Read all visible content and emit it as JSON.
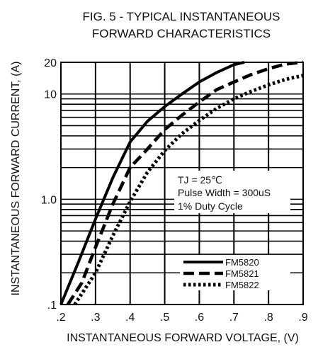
{
  "chart_data": {
    "type": "line",
    "title_lines": [
      "FIG. 5 - TYPICAL INSTANTANEOUS",
      "FORWARD CHARACTERISTICS"
    ],
    "xlabel": "INSTANTANEOUS FORWARD VOLTAGE, (V)",
    "ylabel": "INSTANTANEOUS FORWARD CURRENT, (A)",
    "xlim": [
      0.2,
      0.9
    ],
    "ylim": [
      0.1,
      20
    ],
    "yscale": "log",
    "grid": true,
    "x_ticks": [
      {
        "value": 0.2,
        "label": ".2"
      },
      {
        "value": 0.3,
        "label": ".3"
      },
      {
        "value": 0.4,
        "label": ".4"
      },
      {
        "value": 0.5,
        "label": ".5"
      },
      {
        "value": 0.6,
        "label": ".6"
      },
      {
        "value": 0.7,
        "label": ".7"
      },
      {
        "value": 0.8,
        "label": ".8"
      },
      {
        "value": 0.9,
        "label": ".9"
      }
    ],
    "y_ticks": [
      {
        "value": 0.1,
        "label": ".1"
      },
      {
        "value": 1.0,
        "label": "1.0"
      },
      {
        "value": 10,
        "label": "10"
      },
      {
        "value": 20,
        "label": "20"
      }
    ],
    "annotation_lines": [
      "TJ = 25℃",
      "Pulse Width = 300uS",
      "1% Duty Cycle"
    ],
    "legend_position": "lower-right",
    "series": [
      {
        "name": "FM5820",
        "style": "solid",
        "color": "#000000",
        "x": [
          0.2,
          0.25,
          0.3,
          0.35,
          0.4,
          0.45,
          0.5,
          0.55,
          0.6,
          0.65,
          0.7,
          0.73
        ],
        "y": [
          0.1,
          0.25,
          0.65,
          1.6,
          3.5,
          5.5,
          7.6,
          10,
          13,
          16,
          19,
          20
        ]
      },
      {
        "name": "FM5821",
        "style": "dashed",
        "color": "#000000",
        "x": [
          0.22,
          0.26,
          0.3,
          0.35,
          0.4,
          0.45,
          0.5,
          0.55,
          0.6,
          0.65,
          0.7,
          0.75,
          0.8,
          0.85,
          0.9
        ],
        "y": [
          0.1,
          0.16,
          0.35,
          0.9,
          2.0,
          3.0,
          4.6,
          6.3,
          8.4,
          11,
          13,
          15.3,
          17.4,
          19.3,
          20
        ]
      },
      {
        "name": "FM5822",
        "style": "dotted",
        "color": "#000000",
        "x": [
          0.24,
          0.3,
          0.35,
          0.4,
          0.45,
          0.5,
          0.55,
          0.6,
          0.65,
          0.7,
          0.75,
          0.8,
          0.85,
          0.9
        ],
        "y": [
          0.1,
          0.2,
          0.45,
          0.95,
          1.8,
          2.9,
          4.2,
          5.6,
          7.3,
          9,
          10.6,
          12.2,
          13.8,
          15
        ]
      }
    ]
  }
}
